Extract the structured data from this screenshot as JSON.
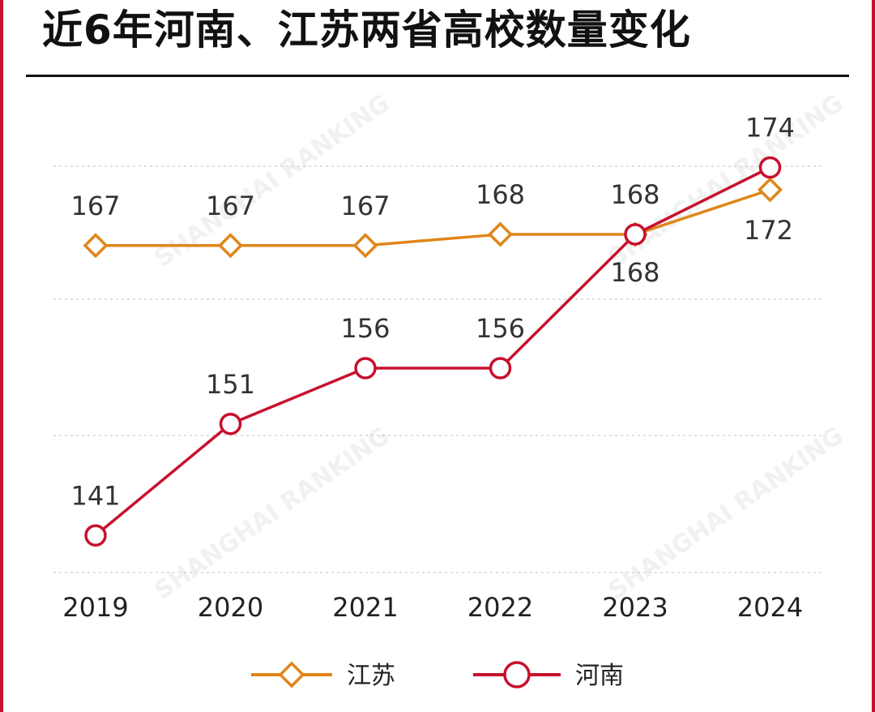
{
  "title": "近6年河南、江苏两省高校数量变化",
  "watermark": "SHANGHAI RANKING",
  "colors": {
    "jiangsu": "#e0861a",
    "henan": "#c8102e",
    "grid": "#cccccc",
    "label": "#333333"
  },
  "chart_data": {
    "type": "line",
    "categories": [
      "2019",
      "2020",
      "2021",
      "2022",
      "2023",
      "2024"
    ],
    "series": [
      {
        "name": "江苏",
        "marker": "diamond",
        "values": [
          167,
          167,
          167,
          168,
          168,
          172
        ]
      },
      {
        "name": "河南",
        "marker": "circle",
        "values": [
          141,
          151,
          156,
          156,
          168,
          174
        ]
      }
    ],
    "title": "近6年河南、江苏两省高校数量变化",
    "xlabel": "",
    "ylabel": "",
    "ylim": [
      132,
      180
    ],
    "grid": "horizontal-dashed",
    "legend": "bottom"
  }
}
